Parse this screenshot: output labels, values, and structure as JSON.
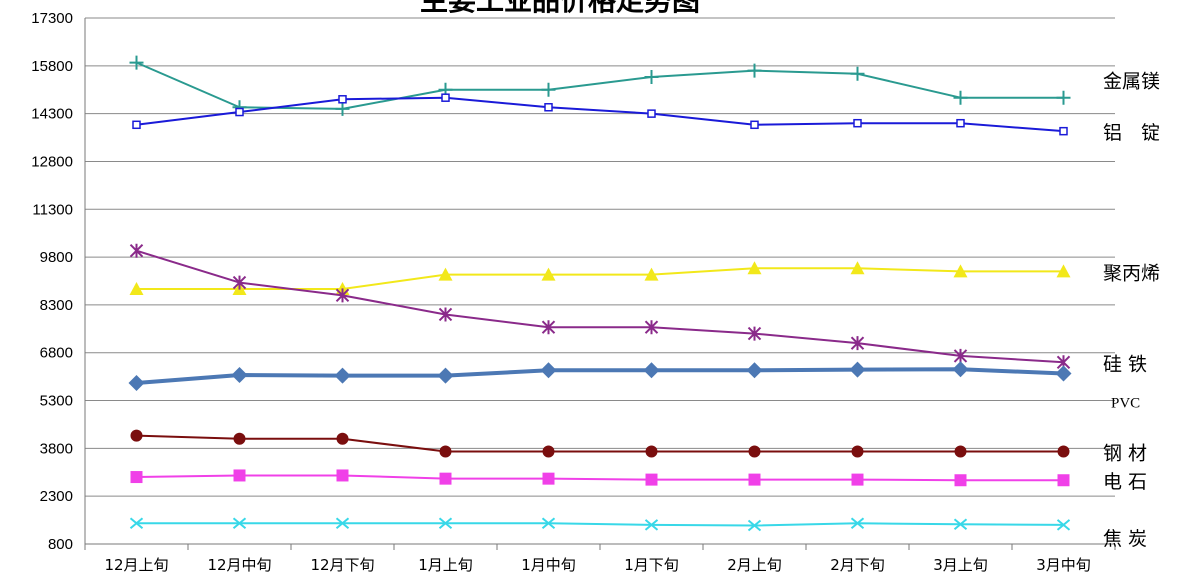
{
  "chart_data": {
    "type": "line",
    "title": "主要工业品价格走势图",
    "xlabel": "",
    "ylabel": "",
    "categories": [
      "12月上旬",
      "12月中旬",
      "12月下旬",
      "1月上旬",
      "1月中旬",
      "1月下旬",
      "2月上旬",
      "2月下旬",
      "3月上旬",
      "3月中旬"
    ],
    "ylim": [
      800,
      17300
    ],
    "yticks": [
      800,
      2300,
      3800,
      5300,
      6800,
      8300,
      9800,
      11300,
      12800,
      14300,
      15800,
      17300
    ],
    "grid": true,
    "legend": "none",
    "series": [
      {
        "name": "金属镁",
        "color": "#2a9a90",
        "marker": "plus",
        "width": 2,
        "values": [
          15900,
          14500,
          14450,
          15050,
          15050,
          15450,
          15650,
          15550,
          14800,
          14800
        ]
      },
      {
        "name": "铝　锭",
        "color": "#1a1ad8",
        "marker": "square-open",
        "width": 2,
        "values": [
          13950,
          14350,
          14750,
          14800,
          14500,
          14300,
          13950,
          14000,
          14000,
          13750
        ]
      },
      {
        "name": "聚丙烯",
        "color": "#f2e81a",
        "marker": "triangle",
        "width": 2,
        "values": [
          8800,
          8800,
          8800,
          9250,
          9250,
          9250,
          9450,
          9450,
          9350,
          9350
        ]
      },
      {
        "name": "硅 铁",
        "color": "#8a2a8a",
        "marker": "star",
        "width": 2,
        "values": [
          10000,
          9000,
          8600,
          8000,
          7600,
          7600,
          7400,
          7100,
          6700,
          6500
        ]
      },
      {
        "name": "PVC",
        "color": "#4c78b4",
        "marker": "diamond",
        "width": 4,
        "values": [
          5850,
          6100,
          6080,
          6080,
          6250,
          6250,
          6250,
          6270,
          6280,
          6150
        ]
      },
      {
        "name": "钢 材",
        "color": "#7a0e0e",
        "marker": "circle",
        "width": 2,
        "values": [
          4200,
          4100,
          4100,
          3700,
          3700,
          3700,
          3700,
          3700,
          3700,
          3700
        ]
      },
      {
        "name": "电 石",
        "color": "#f040e8",
        "marker": "square",
        "width": 2,
        "values": [
          2900,
          2950,
          2950,
          2850,
          2850,
          2820,
          2820,
          2820,
          2800,
          2800
        ]
      },
      {
        "name": "焦 炭",
        "color": "#38d8e8",
        "marker": "x",
        "width": 2,
        "values": [
          1450,
          1450,
          1450,
          1450,
          1450,
          1400,
          1380,
          1450,
          1420,
          1400
        ]
      }
    ]
  }
}
